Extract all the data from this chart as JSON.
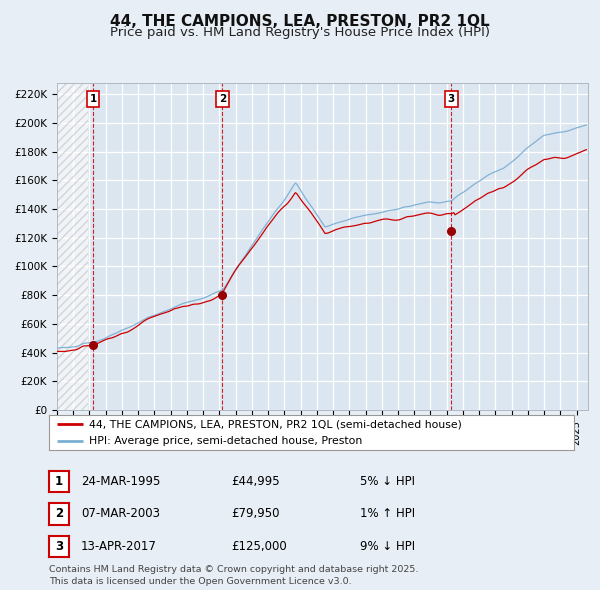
{
  "title": "44, THE CAMPIONS, LEA, PRESTON, PR2 1QL",
  "subtitle": "Price paid vs. HM Land Registry's House Price Index (HPI)",
  "title_fontsize": 11,
  "subtitle_fontsize": 9.5,
  "fig_bg": "#e8eef5",
  "plot_bg": "#dce6f0",
  "grid_color": "#ffffff",
  "y_ticks": [
    0,
    20000,
    40000,
    60000,
    80000,
    100000,
    120000,
    140000,
    160000,
    180000,
    200000,
    220000
  ],
  "y_tick_labels": [
    "£0",
    "£20K",
    "£40K",
    "£60K",
    "£80K",
    "£100K",
    "£120K",
    "£140K",
    "£160K",
    "£180K",
    "£200K",
    "£220K"
  ],
  "ylim": [
    0,
    228000
  ],
  "xlim_start": 1993.0,
  "xlim_end": 2025.7,
  "sale_prices": [
    44995,
    79950,
    125000
  ],
  "sale_labels": [
    "1",
    "2",
    "3"
  ],
  "vline_x": [
    1995.22,
    2003.18,
    2017.28
  ],
  "legend_line1": "44, THE CAMPIONS, LEA, PRESTON, PR2 1QL (semi-detached house)",
  "legend_line2": "HPI: Average price, semi-detached house, Preston",
  "table_data": [
    [
      "1",
      "24-MAR-1995",
      "£44,995",
      "5% ↓ HPI"
    ],
    [
      "2",
      "07-MAR-2003",
      "£79,950",
      "1% ↑ HPI"
    ],
    [
      "3",
      "13-APR-2017",
      "£125,000",
      "9% ↓ HPI"
    ]
  ],
  "footnote": "Contains HM Land Registry data © Crown copyright and database right 2025.\nThis data is licensed under the Open Government Licence v3.0.",
  "hpi_color": "#7bafd4",
  "price_color": "#cc0000",
  "vline_color": "#cc0000",
  "marker_color": "#990000"
}
